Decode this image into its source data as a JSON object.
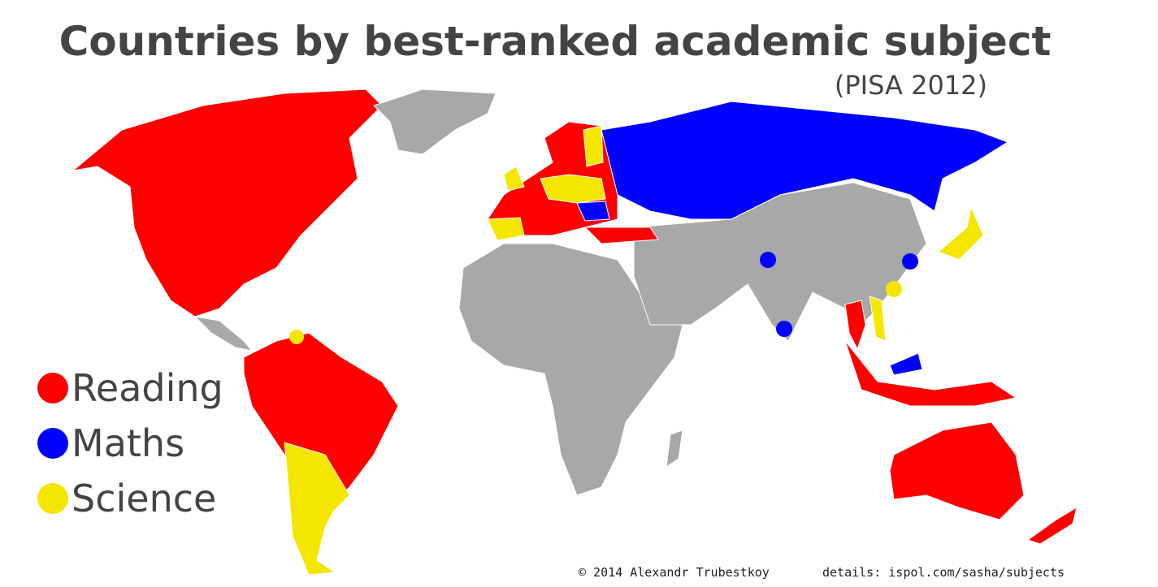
{
  "title": "Countries by best-ranked academic subject",
  "subtitle": "(PISA 2012)",
  "legend": [
    {
      "label": "Reading",
      "color": "#ff0000"
    },
    {
      "label": "Maths",
      "color": "#0000ff"
    },
    {
      "label": "Science",
      "color": "#f5e600"
    }
  ],
  "footer": {
    "copyright": "© 2014 Alexandr Trubestkoy",
    "details": "details: ispol.com/sasha/subjects"
  }
}
